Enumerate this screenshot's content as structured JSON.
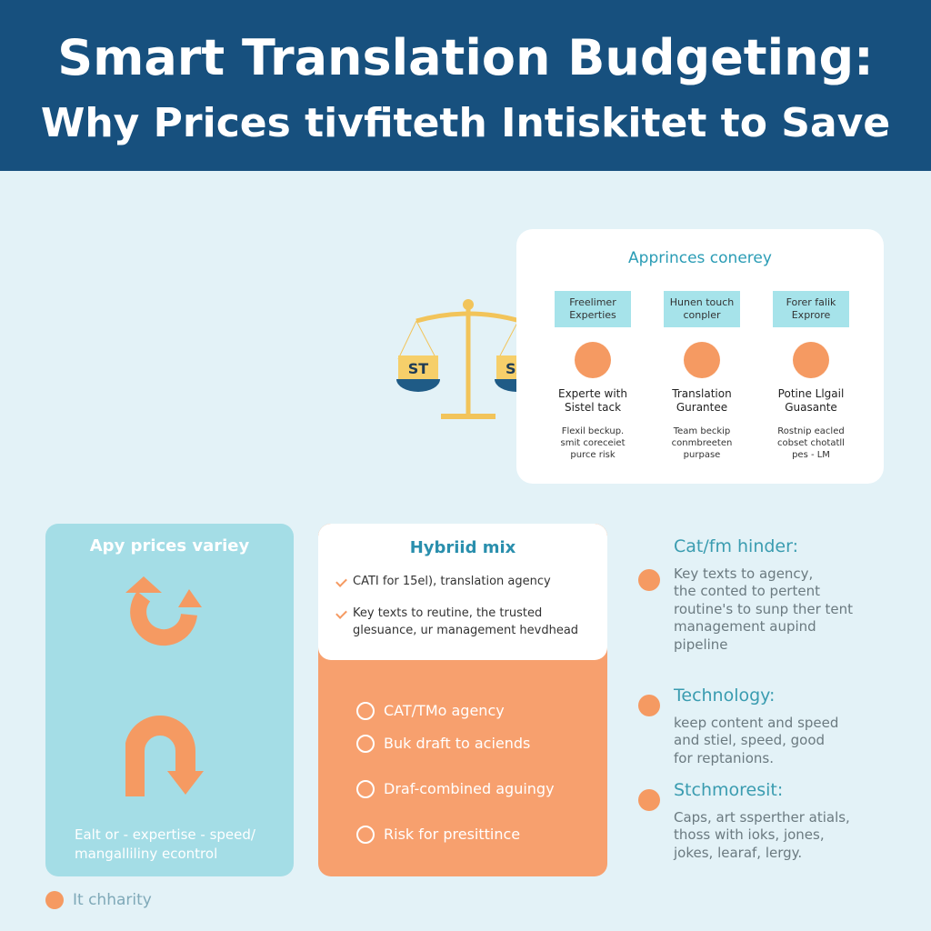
{
  "header": {
    "title": "Smart Translation Budgeting:",
    "subtitle": "Why Prices tivfiteth Intiskitet to Save"
  },
  "scale": {
    "left": "ST",
    "right": "SA"
  },
  "approaches": {
    "title": "Apprinces conerey",
    "columns": [
      {
        "tag": [
          "Freelimer",
          "Experties"
        ],
        "label": [
          "Experte with",
          "Sistel tack"
        ],
        "desc": [
          "Flexil beckup.",
          "smit coreceiet",
          "purce risk"
        ]
      },
      {
        "tag": [
          "Hunen touch",
          "conpler"
        ],
        "label": [
          "Translation",
          "Gurantee"
        ],
        "desc": [
          "Team beckip",
          "conmbreeten",
          "purpase"
        ]
      },
      {
        "tag": [
          "Forer falik",
          "Exprore"
        ],
        "label": [
          "Potine Llgail",
          "Guasante"
        ],
        "desc": [
          "Rostnip eacled",
          "cobset chotatll",
          "pes - LM"
        ]
      }
    ]
  },
  "left_card": {
    "title": "Apy prices variey",
    "footer": [
      "Ealt or - expertise - speed/",
      "mangalliliny econtrol"
    ]
  },
  "hybrid": {
    "title": "Hybriid mix",
    "checks": [
      [
        "CATI for 15el), translation agency"
      ],
      [
        "Key texts to reutine, the trusted",
        "glesuance, ur management hevdhead"
      ]
    ],
    "items": [
      "CAT/TMo agency",
      "Buk draft to aciends",
      "Draf-combined aguingy",
      "Risk for presittince"
    ]
  },
  "notes": [
    {
      "heading": "Cat/fm hinder:",
      "lines": [
        "Key texts to agency,",
        "the conted to pertent",
        "routine's to sunp ther tent",
        "management aupind",
        "pipeline"
      ]
    },
    {
      "heading": "Technology:",
      "lines": [
        "keep content and speed",
        "and stiel, speed, good",
        "for reptanions."
      ]
    },
    {
      "heading": "Stchmoresit:",
      "lines": [
        "Caps, art ssperther atials,",
        "thoss with ioks, jones,",
        "jokes, learaf, lergy."
      ]
    }
  ],
  "legend": "It chharity"
}
